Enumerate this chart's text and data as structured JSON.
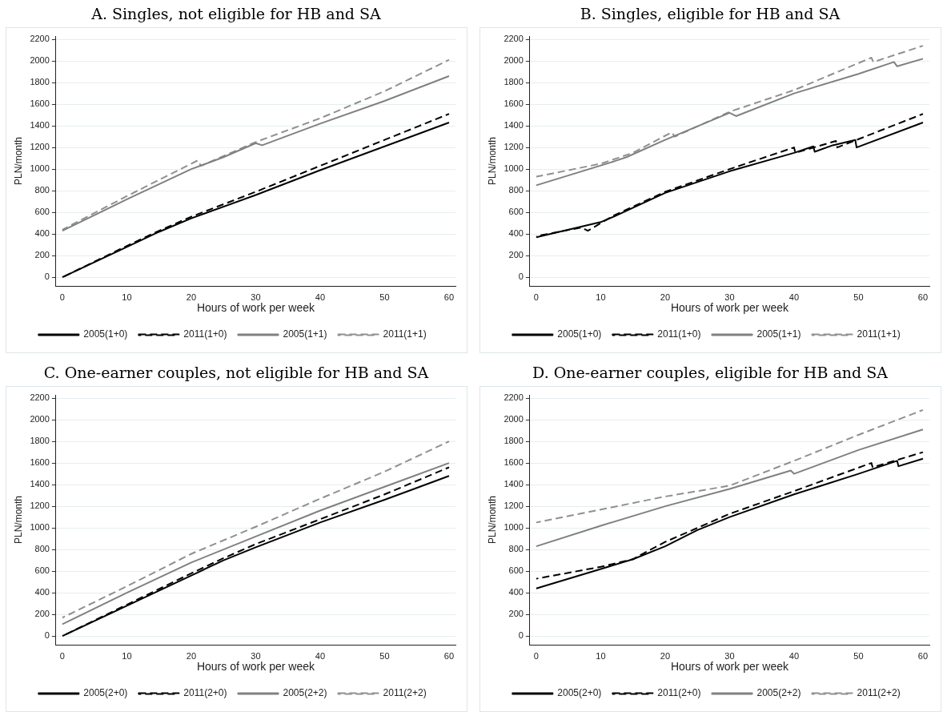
{
  "chart_data": [
    {
      "type": "line",
      "title": "A. Singles, not eligible for HB and SA",
      "xlabel": "Hours of work per week",
      "ylabel": "PLN/month",
      "xlim": [
        -1,
        61
      ],
      "ylim": [
        -80,
        2230
      ],
      "xticks": [
        0,
        10,
        20,
        30,
        40,
        50,
        60
      ],
      "yticks": [
        0,
        200,
        400,
        600,
        800,
        1000,
        1200,
        1400,
        1600,
        1800,
        2000,
        2200
      ],
      "grid": "y",
      "legend": "bottom",
      "marker": "none",
      "series": [
        {
          "name": "2005(1+0)",
          "color": "#000000",
          "line_style": "solid",
          "x": [
            0,
            10,
            15,
            20,
            30,
            40,
            50,
            60
          ],
          "values": [
            0,
            280,
            420,
            545,
            760,
            990,
            1210,
            1430
          ]
        },
        {
          "name": "2011(1+0)",
          "color": "#000000",
          "line_style": "dashed",
          "x": [
            0,
            10,
            15,
            20,
            30,
            40,
            50,
            60
          ],
          "values": [
            0,
            290,
            430,
            560,
            790,
            1030,
            1270,
            1510
          ]
        },
        {
          "name": "2005(1+1)",
          "color": "#808080",
          "line_style": "solid",
          "x": [
            0,
            10,
            20,
            25,
            30,
            31,
            40,
            50,
            60
          ],
          "values": [
            430,
            720,
            1000,
            1110,
            1240,
            1220,
            1420,
            1630,
            1860
          ]
        },
        {
          "name": "2011(1+1)",
          "color": "#909090",
          "line_style": "dashed",
          "x": [
            0,
            10,
            21,
            21.5,
            30,
            40,
            50,
            60
          ],
          "values": [
            440,
            750,
            1080,
            1030,
            1250,
            1470,
            1720,
            2010
          ]
        }
      ]
    },
    {
      "type": "line",
      "title": "B. Singles, eligible for HB and SA",
      "xlabel": "Hours of work per week",
      "ylabel": "PLN/month",
      "xlim": [
        -1,
        61
      ],
      "ylim": [
        -80,
        2230
      ],
      "xticks": [
        0,
        10,
        20,
        30,
        40,
        50,
        60
      ],
      "yticks": [
        0,
        200,
        400,
        600,
        800,
        1000,
        1200,
        1400,
        1600,
        1800,
        2000,
        2200
      ],
      "grid": "y",
      "legend": "bottom",
      "marker": "none",
      "series": [
        {
          "name": "2005(1+0)",
          "color": "#000000",
          "line_style": "solid",
          "x": [
            0,
            10,
            12,
            20,
            30,
            40,
            43,
            43.2,
            46,
            49.5,
            49.7,
            60
          ],
          "values": [
            370,
            510,
            560,
            780,
            980,
            1150,
            1210,
            1160,
            1220,
            1270,
            1200,
            1430
          ]
        },
        {
          "name": "2011(1+0)",
          "color": "#000000",
          "line_style": "dashed",
          "x": [
            0,
            7,
            8,
            12,
            20,
            30,
            40,
            40.2,
            46.5,
            46.7,
            60
          ],
          "values": [
            380,
            460,
            430,
            570,
            790,
            1000,
            1200,
            1150,
            1260,
            1200,
            1510
          ]
        },
        {
          "name": "2005(1+1)",
          "color": "#808080",
          "line_style": "solid",
          "x": [
            0,
            12,
            14,
            20,
            30,
            31,
            40,
            50,
            55.5,
            56,
            60
          ],
          "values": [
            850,
            1070,
            1110,
            1270,
            1520,
            1490,
            1700,
            1880,
            1990,
            1950,
            2020
          ]
        },
        {
          "name": "2011(1+1)",
          "color": "#909090",
          "line_style": "dashed",
          "x": [
            0,
            10,
            15,
            21,
            21.5,
            30,
            40,
            52,
            52.3,
            60
          ],
          "values": [
            930,
            1050,
            1150,
            1340,
            1300,
            1530,
            1730,
            2030,
            1990,
            2140
          ]
        }
      ]
    },
    {
      "type": "line",
      "title": "C. One-earner couples, not eligible for HB and SA",
      "xlabel": "Hours of work per week",
      "ylabel": "PLN/month",
      "xlim": [
        -1,
        61
      ],
      "ylim": [
        -80,
        2230
      ],
      "xticks": [
        0,
        10,
        20,
        30,
        40,
        50,
        60
      ],
      "yticks": [
        0,
        200,
        400,
        600,
        800,
        1000,
        1200,
        1400,
        1600,
        1800,
        2000,
        2200
      ],
      "grid": "y",
      "legend": "bottom",
      "marker": "none",
      "series": [
        {
          "name": "2005(2+0)",
          "color": "#000000",
          "line_style": "solid",
          "x": [
            0,
            10,
            20,
            25,
            30,
            40,
            50,
            60
          ],
          "values": [
            0,
            280,
            560,
            700,
            820,
            1050,
            1260,
            1480
          ]
        },
        {
          "name": "2011(2+0)",
          "color": "#000000",
          "line_style": "dashed",
          "x": [
            0,
            10,
            20,
            25,
            30,
            40,
            50,
            60
          ],
          "values": [
            0,
            290,
            580,
            720,
            850,
            1080,
            1310,
            1560
          ]
        },
        {
          "name": "2005(2+2)",
          "color": "#808080",
          "line_style": "solid",
          "x": [
            0,
            10,
            20,
            30,
            40,
            50,
            60
          ],
          "values": [
            110,
            400,
            680,
            920,
            1160,
            1380,
            1600
          ]
        },
        {
          "name": "2011(2+2)",
          "color": "#909090",
          "line_style": "dashed",
          "x": [
            0,
            10,
            20,
            30,
            40,
            50,
            60
          ],
          "values": [
            170,
            460,
            760,
            1010,
            1270,
            1520,
            1800
          ]
        }
      ]
    },
    {
      "type": "line",
      "title": "D. One-earner couples, eligible for HB and SA",
      "xlabel": "Hours of work per week",
      "ylabel": "PLN/month",
      "xlim": [
        -1,
        61
      ],
      "ylim": [
        -80,
        2230
      ],
      "xticks": [
        0,
        10,
        20,
        30,
        40,
        50,
        60
      ],
      "yticks": [
        0,
        200,
        400,
        600,
        800,
        1000,
        1200,
        1400,
        1600,
        1800,
        2000,
        2200
      ],
      "grid": "y",
      "legend": "bottom",
      "marker": "none",
      "series": [
        {
          "name": "2005(2+0)",
          "color": "#000000",
          "line_style": "solid",
          "x": [
            0,
            10,
            15,
            20,
            25,
            30,
            40,
            50,
            56,
            56.2,
            60
          ],
          "values": [
            440,
            620,
            710,
            830,
            980,
            1100,
            1310,
            1500,
            1620,
            1570,
            1640
          ]
        },
        {
          "name": "2011(2+0)",
          "color": "#000000",
          "line_style": "dashed",
          "x": [
            0,
            10,
            15,
            16.5,
            20,
            25,
            30,
            40,
            52,
            52.2,
            60
          ],
          "values": [
            530,
            640,
            710,
            760,
            870,
            1000,
            1130,
            1340,
            1600,
            1560,
            1700
          ]
        },
        {
          "name": "2005(2+2)",
          "color": "#808080",
          "line_style": "solid",
          "x": [
            0,
            10,
            20,
            30,
            39.5,
            40,
            50,
            60
          ],
          "values": [
            830,
            1020,
            1200,
            1360,
            1530,
            1500,
            1720,
            1910
          ]
        },
        {
          "name": "2011(2+2)",
          "color": "#909090",
          "line_style": "dashed",
          "x": [
            0,
            10,
            20,
            30,
            40,
            50,
            60
          ],
          "values": [
            1050,
            1170,
            1290,
            1390,
            1620,
            1860,
            2090
          ]
        }
      ]
    }
  ]
}
